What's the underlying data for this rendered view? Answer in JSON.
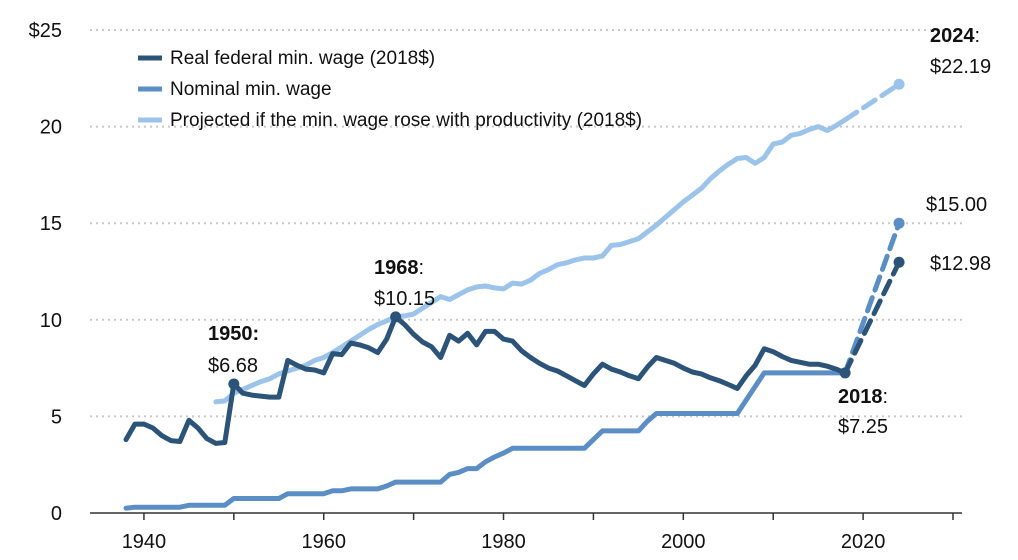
{
  "chart_data": {
    "type": "line",
    "title": "",
    "xlabel": "",
    "ylabel": "",
    "xlim": [
      1934,
      2031
    ],
    "ylim": [
      0,
      25
    ],
    "x_ticks": [
      {
        "value": 1940,
        "label": "1940"
      },
      {
        "value": 1960,
        "label": "1960"
      },
      {
        "value": 1980,
        "label": "1980"
      },
      {
        "value": 2000,
        "label": "2000"
      },
      {
        "value": 2020,
        "label": "2020"
      }
    ],
    "y_ticks": [
      {
        "value": 0,
        "label": "0"
      },
      {
        "value": 5,
        "label": "5"
      },
      {
        "value": 10,
        "label": "10"
      },
      {
        "value": 15,
        "label": "15"
      },
      {
        "value": 20,
        "label": "20"
      },
      {
        "value": 25,
        "label": "$25"
      }
    ],
    "grid": "horizontal-dotted",
    "legend_position": "top-left",
    "series": [
      {
        "name": "Real federal min. wage (2018$)",
        "color": "#2c5478",
        "values": [
          [
            1938,
            3.8
          ],
          [
            1939,
            4.6
          ],
          [
            1940,
            4.6
          ],
          [
            1941,
            4.4
          ],
          [
            1942,
            4.0
          ],
          [
            1943,
            3.75
          ],
          [
            1944,
            3.7
          ],
          [
            1945,
            4.8
          ],
          [
            1946,
            4.4
          ],
          [
            1947,
            3.85
          ],
          [
            1948,
            3.6
          ],
          [
            1949,
            3.65
          ],
          [
            1950,
            6.68
          ],
          [
            1951,
            6.2
          ],
          [
            1952,
            6.1
          ],
          [
            1953,
            6.05
          ],
          [
            1954,
            6.0
          ],
          [
            1955,
            6.0
          ],
          [
            1956,
            7.9
          ],
          [
            1957,
            7.65
          ],
          [
            1958,
            7.45
          ],
          [
            1959,
            7.4
          ],
          [
            1960,
            7.25
          ],
          [
            1961,
            8.25
          ],
          [
            1962,
            8.2
          ],
          [
            1963,
            8.8
          ],
          [
            1964,
            8.7
          ],
          [
            1965,
            8.55
          ],
          [
            1966,
            8.3
          ],
          [
            1967,
            9.0
          ],
          [
            1968,
            10.15
          ],
          [
            1969,
            9.75
          ],
          [
            1970,
            9.25
          ],
          [
            1971,
            8.85
          ],
          [
            1972,
            8.6
          ],
          [
            1973,
            8.05
          ],
          [
            1974,
            9.2
          ],
          [
            1975,
            8.9
          ],
          [
            1976,
            9.3
          ],
          [
            1977,
            8.7
          ],
          [
            1978,
            9.4
          ],
          [
            1979,
            9.4
          ],
          [
            1980,
            9.0
          ],
          [
            1981,
            8.9
          ],
          [
            1982,
            8.4
          ],
          [
            1983,
            8.05
          ],
          [
            1984,
            7.75
          ],
          [
            1985,
            7.5
          ],
          [
            1986,
            7.35
          ],
          [
            1987,
            7.1
          ],
          [
            1988,
            6.85
          ],
          [
            1989,
            6.6
          ],
          [
            1990,
            7.2
          ],
          [
            1991,
            7.7
          ],
          [
            1992,
            7.45
          ],
          [
            1993,
            7.3
          ],
          [
            1994,
            7.1
          ],
          [
            1995,
            6.95
          ],
          [
            1996,
            7.55
          ],
          [
            1997,
            8.05
          ],
          [
            1998,
            7.9
          ],
          [
            1999,
            7.75
          ],
          [
            2000,
            7.5
          ],
          [
            2001,
            7.3
          ],
          [
            2002,
            7.2
          ],
          [
            2003,
            7.0
          ],
          [
            2004,
            6.85
          ],
          [
            2005,
            6.65
          ],
          [
            2006,
            6.45
          ],
          [
            2007,
            7.1
          ],
          [
            2008,
            7.65
          ],
          [
            2009,
            8.5
          ],
          [
            2010,
            8.35
          ],
          [
            2011,
            8.1
          ],
          [
            2012,
            7.9
          ],
          [
            2013,
            7.8
          ],
          [
            2014,
            7.7
          ],
          [
            2015,
            7.7
          ],
          [
            2016,
            7.6
          ],
          [
            2017,
            7.45
          ],
          [
            2018,
            7.25
          ]
        ],
        "projected": [
          [
            2018,
            7.25
          ],
          [
            2024,
            12.98
          ]
        ]
      },
      {
        "name": "Nominal min. wage",
        "color": "#5b8ec4",
        "values": [
          [
            1938,
            0.25
          ],
          [
            1939,
            0.3
          ],
          [
            1944,
            0.3
          ],
          [
            1945,
            0.4
          ],
          [
            1949,
            0.4
          ],
          [
            1950,
            0.75
          ],
          [
            1955,
            0.75
          ],
          [
            1956,
            1.0
          ],
          [
            1960,
            1.0
          ],
          [
            1961,
            1.15
          ],
          [
            1962,
            1.15
          ],
          [
            1963,
            1.25
          ],
          [
            1966,
            1.25
          ],
          [
            1967,
            1.4
          ],
          [
            1968,
            1.6
          ],
          [
            1973,
            1.6
          ],
          [
            1974,
            2.0
          ],
          [
            1975,
            2.1
          ],
          [
            1976,
            2.3
          ],
          [
            1977,
            2.3
          ],
          [
            1978,
            2.65
          ],
          [
            1979,
            2.9
          ],
          [
            1980,
            3.1
          ],
          [
            1981,
            3.35
          ],
          [
            1989,
            3.35
          ],
          [
            1990,
            3.8
          ],
          [
            1991,
            4.25
          ],
          [
            1995,
            4.25
          ],
          [
            1996,
            4.75
          ],
          [
            1997,
            5.15
          ],
          [
            2006,
            5.15
          ],
          [
            2007,
            5.85
          ],
          [
            2008,
            6.55
          ],
          [
            2009,
            7.25
          ],
          [
            2018,
            7.25
          ]
        ],
        "projected": [
          [
            2018,
            7.25
          ],
          [
            2024,
            15.0
          ]
        ]
      },
      {
        "name": "Projected if the min. wage rose with productivity (2018$)",
        "color": "#9cc3ea",
        "values": [
          [
            1948,
            5.75
          ],
          [
            1949,
            5.8
          ],
          [
            1950,
            6.2
          ],
          [
            1951,
            6.4
          ],
          [
            1952,
            6.6
          ],
          [
            1953,
            6.8
          ],
          [
            1954,
            6.95
          ],
          [
            1955,
            7.2
          ],
          [
            1956,
            7.35
          ],
          [
            1957,
            7.5
          ],
          [
            1958,
            7.65
          ],
          [
            1959,
            7.9
          ],
          [
            1960,
            8.05
          ],
          [
            1961,
            8.3
          ],
          [
            1962,
            8.6
          ],
          [
            1963,
            8.9
          ],
          [
            1964,
            9.2
          ],
          [
            1965,
            9.5
          ],
          [
            1966,
            9.75
          ],
          [
            1967,
            9.95
          ],
          [
            1968,
            10.15
          ],
          [
            1969,
            10.2
          ],
          [
            1970,
            10.3
          ],
          [
            1971,
            10.6
          ],
          [
            1972,
            10.9
          ],
          [
            1973,
            11.2
          ],
          [
            1974,
            11.05
          ],
          [
            1975,
            11.3
          ],
          [
            1976,
            11.55
          ],
          [
            1977,
            11.7
          ],
          [
            1978,
            11.75
          ],
          [
            1979,
            11.65
          ],
          [
            1980,
            11.6
          ],
          [
            1981,
            11.9
          ],
          [
            1982,
            11.85
          ],
          [
            1983,
            12.05
          ],
          [
            1984,
            12.4
          ],
          [
            1985,
            12.6
          ],
          [
            1986,
            12.85
          ],
          [
            1987,
            12.95
          ],
          [
            1988,
            13.1
          ],
          [
            1989,
            13.2
          ],
          [
            1990,
            13.2
          ],
          [
            1991,
            13.3
          ],
          [
            1992,
            13.85
          ],
          [
            1993,
            13.9
          ],
          [
            1994,
            14.05
          ],
          [
            1995,
            14.2
          ],
          [
            1996,
            14.55
          ],
          [
            1997,
            14.9
          ],
          [
            1998,
            15.3
          ],
          [
            1999,
            15.7
          ],
          [
            2000,
            16.1
          ],
          [
            2001,
            16.45
          ],
          [
            2002,
            16.8
          ],
          [
            2003,
            17.3
          ],
          [
            2004,
            17.7
          ],
          [
            2005,
            18.05
          ],
          [
            2006,
            18.35
          ],
          [
            2007,
            18.4
          ],
          [
            2008,
            18.1
          ],
          [
            2009,
            18.4
          ],
          [
            2010,
            19.1
          ],
          [
            2011,
            19.2
          ],
          [
            2012,
            19.55
          ],
          [
            2013,
            19.65
          ],
          [
            2014,
            19.85
          ],
          [
            2015,
            20.0
          ],
          [
            2016,
            19.8
          ],
          [
            2017,
            20.05
          ],
          [
            2018,
            20.35
          ]
        ],
        "projected": [
          [
            2018,
            20.35
          ],
          [
            2024,
            22.19
          ]
        ]
      }
    ],
    "annotations": [
      {
        "year_label": "1950:",
        "value_label": "$6.68"
      },
      {
        "year_label": "1968",
        "suffix": ":",
        "value_label": "$10.15"
      },
      {
        "year_label": "2018",
        "suffix": ":",
        "value_label": "$7.25"
      },
      {
        "year_label": "2024",
        "suffix": ":",
        "value_label": "$22.19"
      },
      {
        "value_label": "$15.00"
      },
      {
        "value_label": "$12.98"
      }
    ]
  }
}
